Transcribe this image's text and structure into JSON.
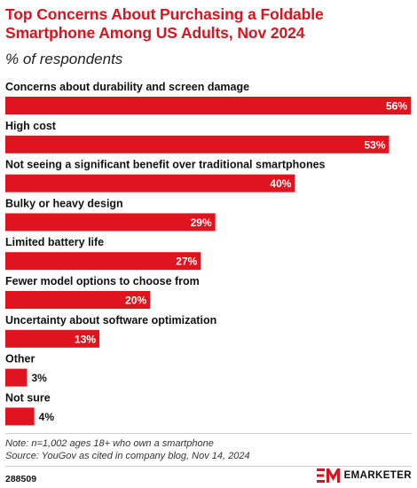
{
  "title": "Top Concerns About Purchasing a Foldable Smartphone Among US Adults, Nov 2024",
  "subtitle": "% of respondents",
  "chart_data": {
    "type": "bar",
    "orientation": "horizontal",
    "categories": [
      "Concerns about durability and screen damage",
      "High cost",
      "Not seeing a significant benefit over traditional smartphones",
      "Bulky or heavy design",
      "Limited battery life",
      "Fewer model options to choose from",
      "Uncertainty about software optimization",
      "Other",
      "Not sure"
    ],
    "values": [
      56,
      53,
      40,
      29,
      27,
      20,
      13,
      3,
      4
    ],
    "value_suffix": "%",
    "title": "Top Concerns About Purchasing a Foldable Smartphone Among US Adults, Nov 2024",
    "xlabel": "",
    "ylabel": "% of respondents",
    "xlim": [
      0,
      56
    ],
    "grid": false,
    "bar_color": "#e0141e"
  },
  "footer": {
    "note": "Note: n=1,002 ages 18+ who own a smartphone",
    "source": "Source: YouGov as cited in company blog, Nov 14, 2024",
    "chart_id": "288509",
    "brand_name": "EMARKETER",
    "logo_icon": "emarketer-logo-icon"
  },
  "colors": {
    "title": "#d7141f",
    "bar": "#e0141e",
    "value_label_inside": "#ffffff",
    "value_label_outside": "#111111"
  }
}
